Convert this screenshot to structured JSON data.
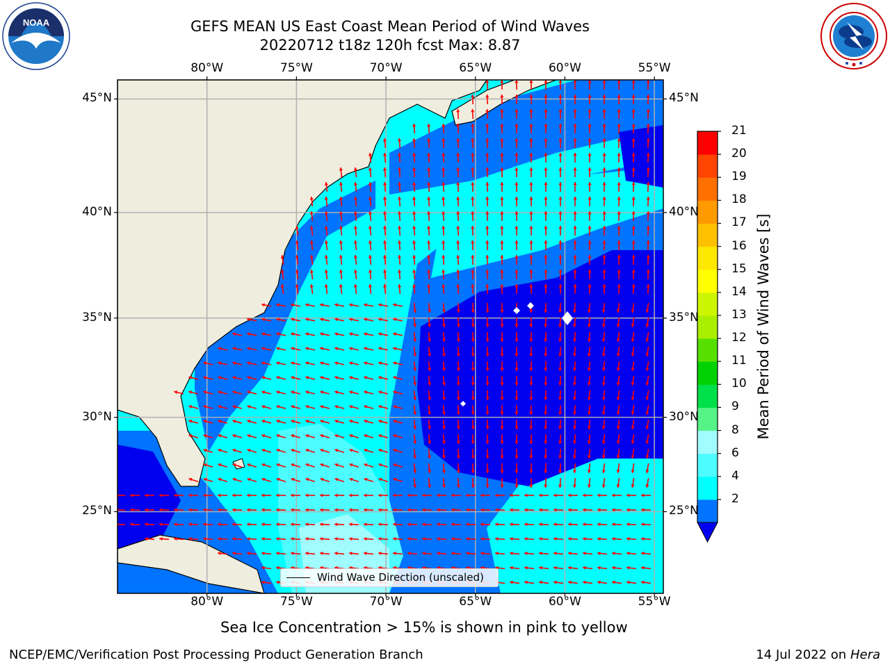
{
  "title": {
    "line1": "GEFS MEAN US East Coast Mean Period of Wind Waves",
    "line2": "20220712 t18z 120h fcst    Max: 8.87"
  },
  "logos": {
    "left": {
      "name": "noaa-logo",
      "text": "NOAA",
      "ring_text": "NATIONAL OCEANIC AND ATMOSPHERIC ADMINISTRATION · U.S. DEPARTMENT OF COMMERCE"
    },
    "right": {
      "name": "nws-logo",
      "ring_text": "NATIONAL WEATHER SERVICE"
    }
  },
  "map": {
    "lon_ticks": [
      "80°W",
      "75°W",
      "70°W",
      "65°W",
      "60°W",
      "55°W"
    ],
    "lat_ticks": [
      "45°N",
      "40°N",
      "35°N",
      "30°N",
      "25°N"
    ],
    "lon_values": [
      -80,
      -75,
      -70,
      -65,
      -60,
      -55
    ],
    "lat_values": [
      45,
      40,
      35,
      30,
      25
    ],
    "lon_range": [
      -85,
      -54.5
    ],
    "lat_range": [
      20.5,
      45.8
    ],
    "land_color": "#efedde",
    "grid_color": "#b0b0b0",
    "arrow_color": "#ff0000",
    "legend_label": "Wind Wave Direction (unscaled)"
  },
  "colorbar": {
    "label": "Mean Period of Wind Waves [s]",
    "ticks": [
      "21",
      "20",
      "19",
      "18",
      "17",
      "16",
      "15",
      "14",
      "13",
      "12",
      "11",
      "10",
      "9",
      "8",
      "6",
      "4",
      "2"
    ],
    "colors": [
      "#0000ee",
      "#0073ff",
      "#00ffff",
      "#4dfcff",
      "#a0fcff",
      "#55f288",
      "#00e04a",
      "#00d100",
      "#55e000",
      "#aaee00",
      "#ccf600",
      "#ffff00",
      "#ffe800",
      "#ffc000",
      "#ff9a00",
      "#ff7000",
      "#ff4500",
      "#ff0000"
    ],
    "under_color": "#0000ee"
  },
  "notes": {
    "sea_ice": "Sea Ice Concentration > 15% is shown in pink to yellow",
    "credit": "NCEP/EMC/Verification Post Processing Product Generation Branch",
    "date": "14 Jul 2022 on",
    "machine": "Hera"
  }
}
